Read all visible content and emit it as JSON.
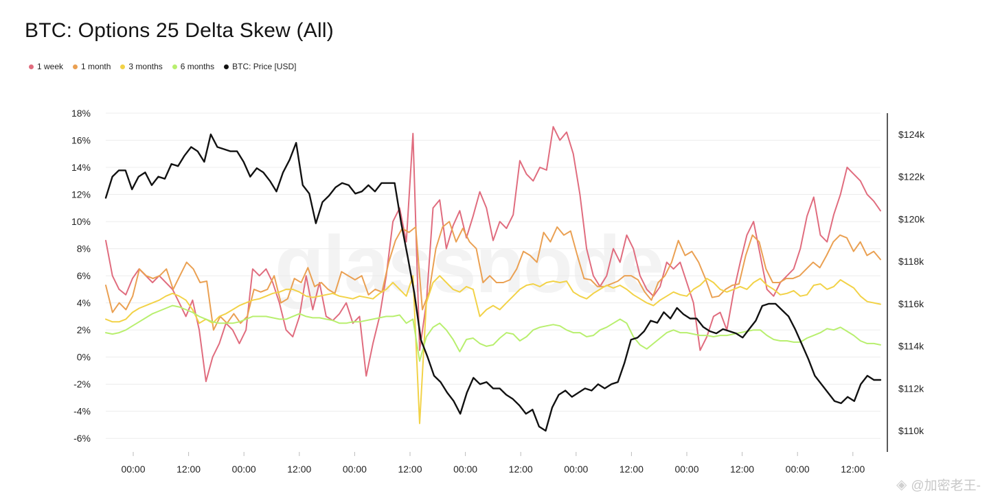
{
  "title": "BTC: Options 25 Delta Skew (All)",
  "watermark": "glassnode",
  "badge": {
    "icon": "diamond-icon",
    "text": "@加密老王-"
  },
  "legend": [
    {
      "label": "1 week",
      "color": "#e06c7e"
    },
    {
      "label": "1 month",
      "color": "#eaa052"
    },
    {
      "label": "3 months",
      "color": "#f2d247"
    },
    {
      "label": "6 months",
      "color": "#b8ef6e"
    },
    {
      "label": "BTC: Price [USD]",
      "color": "#111111"
    }
  ],
  "chart_data": {
    "type": "line",
    "x_tick_labels": [
      "00:00",
      "12:00",
      "00:00",
      "12:00",
      "00:00",
      "12:00",
      "00:00",
      "12:00",
      "00:00",
      "12:00",
      "00:00",
      "12:00",
      "00:00",
      "12:00"
    ],
    "y_left": {
      "ticks": [
        18,
        16,
        14,
        12,
        10,
        8,
        6,
        4,
        2,
        0,
        -2,
        -4,
        -6
      ],
      "tick_labels": [
        "18%",
        "16%",
        "14%",
        "12%",
        "10%",
        "8%",
        "6%",
        "4%",
        "2%",
        "0%",
        "-2%",
        "-4%",
        "-6%"
      ],
      "range": [
        -7,
        18
      ]
    },
    "y_right": {
      "ticks": [
        124000,
        122000,
        120000,
        118000,
        116000,
        114000,
        112000,
        110000
      ],
      "tick_labels": [
        "$124k",
        "$122k",
        "$120k",
        "$118k",
        "$116k",
        "$114k",
        "$112k",
        "$110k"
      ],
      "range": [
        109000,
        125000
      ]
    },
    "grid": true,
    "series": [
      {
        "name": "1 week",
        "axis": "left",
        "color": "#e06c7e",
        "values": [
          8.6,
          6,
          5,
          4.6,
          5.8,
          6.5,
          6,
          5.5,
          6,
          5.5,
          5,
          4,
          3,
          4.2,
          2,
          -1.8,
          0,
          1,
          2.5,
          2,
          1,
          2,
          6.5,
          6,
          6.5,
          5.5,
          4,
          2,
          1.5,
          3,
          6,
          3.5,
          5.5,
          3,
          2.7,
          3.2,
          4,
          2.5,
          3,
          -1.4,
          1,
          3,
          6,
          10,
          11,
          8.5,
          16.5,
          0.5,
          4,
          11,
          11.6,
          8,
          9.7,
          10.8,
          8.8,
          10.4,
          12.2,
          11,
          8.6,
          10,
          9.5,
          10.5,
          14.5,
          13.5,
          13,
          14,
          13.8,
          17,
          16,
          16.6,
          15,
          12,
          8,
          6,
          5.2,
          6,
          8,
          7,
          9,
          8,
          6,
          5,
          4.5,
          5.2,
          7,
          6.5,
          7,
          5.5,
          4,
          0.5,
          1.5,
          3,
          3.3,
          2,
          4.8,
          7,
          9,
          10,
          7.5,
          5,
          4.5,
          5.5,
          6,
          6.5,
          8,
          10.4,
          11.8,
          9,
          8.5,
          10.5,
          12,
          14,
          13.5,
          13,
          12,
          11.5,
          10.8
        ]
      },
      {
        "name": "1 month",
        "axis": "left",
        "color": "#eaa052",
        "values": [
          5.3,
          3.3,
          4,
          3.5,
          4.5,
          6.5,
          6,
          5.8,
          6,
          6.5,
          5,
          6,
          7,
          6.5,
          5.5,
          5.6,
          2,
          3,
          2.5,
          3.2,
          2.5,
          3,
          5,
          4.8,
          5,
          6,
          4,
          4.3,
          5.8,
          5.5,
          6.6,
          5.2,
          5.5,
          5,
          4.7,
          6.3,
          6,
          5.7,
          6,
          4.6,
          5,
          4.8,
          7,
          8.6,
          9.5,
          9.2,
          9.6,
          3.5,
          4.8,
          8,
          9.6,
          10,
          8.5,
          9.5,
          8.5,
          8,
          5.5,
          6,
          5.5,
          5.5,
          5.7,
          6.5,
          7.8,
          7.5,
          7,
          9.2,
          8.5,
          9.6,
          9,
          9.3,
          7.5,
          5.8,
          5.7,
          5.2,
          5.2,
          5.4,
          5.6,
          6,
          6,
          5.7,
          4.8,
          4.2,
          5.5,
          6,
          7,
          8.6,
          7.5,
          7.8,
          7,
          5.8,
          4.4,
          4.5,
          5,
          5.3,
          5.4,
          7.5,
          9,
          8.5,
          6.5,
          5.5,
          5.5,
          5.8,
          5.8,
          6,
          6.5,
          7,
          6.6,
          7.5,
          8.5,
          9,
          8.8,
          7.8,
          8.5,
          7.5,
          7.8,
          7.2
        ]
      },
      {
        "name": "3 months",
        "axis": "left",
        "color": "#f2d247",
        "values": [
          2.8,
          2.6,
          2.6,
          2.8,
          3.3,
          3.6,
          3.8,
          4,
          4.2,
          4.5,
          4.7,
          4.5,
          4.2,
          3.5,
          2.5,
          2.8,
          2.5,
          3,
          3.2,
          3.5,
          3.8,
          4,
          4.2,
          4.3,
          4.5,
          4.7,
          4.8,
          5,
          5,
          4.8,
          4.5,
          4.4,
          4.5,
          4.6,
          4.7,
          4.5,
          4.4,
          4.3,
          4.5,
          4.4,
          4.3,
          4.7,
          5,
          5.5,
          5,
          4.5,
          6,
          -4.9,
          4,
          5.5,
          6,
          5.5,
          5,
          4.8,
          5.2,
          5,
          3,
          3.5,
          3.8,
          3.5,
          4,
          4.5,
          5,
          5.3,
          5.4,
          5.2,
          5.5,
          5.6,
          5.5,
          5.6,
          4.8,
          4.5,
          4.3,
          4.7,
          5,
          5.3,
          5.1,
          5.3,
          5,
          4.6,
          4.3,
          4,
          3.8,
          4.2,
          4.5,
          4.8,
          4.6,
          4.5,
          5,
          5.3,
          5.8,
          5.5,
          5,
          4.8,
          5,
          5.2,
          5,
          5.5,
          5.8,
          5.3,
          5,
          4.6,
          4.7,
          4.9,
          4.5,
          4.6,
          5.3,
          5.4,
          5,
          5.2,
          5.7,
          5.4,
          5.1,
          4.5,
          4.1,
          4,
          3.9
        ]
      },
      {
        "name": "6 months",
        "axis": "left",
        "color": "#b8ef6e",
        "values": [
          1.8,
          1.7,
          1.8,
          2,
          2.3,
          2.6,
          2.9,
          3.2,
          3.4,
          3.6,
          3.8,
          3.7,
          3.5,
          3.3,
          3,
          2.8,
          2.6,
          2.5,
          2.5,
          2.5,
          2.6,
          2.8,
          3,
          3,
          3,
          2.9,
          2.8,
          2.8,
          3,
          3.2,
          3,
          2.9,
          2.9,
          2.8,
          2.7,
          2.5,
          2.5,
          2.6,
          2.6,
          2.7,
          2.8,
          2.9,
          3,
          3,
          3.1,
          2.5,
          2.8,
          -0.3,
          1.5,
          2.2,
          2.5,
          2,
          1.3,
          0.4,
          1.3,
          1.4,
          1,
          0.8,
          0.9,
          1.4,
          1.8,
          1.7,
          1.2,
          1.5,
          2,
          2.2,
          2.3,
          2.4,
          2.3,
          2,
          1.8,
          1.8,
          1.5,
          1.6,
          2,
          2.2,
          2.5,
          2.8,
          2.5,
          1.5,
          0.9,
          0.6,
          1,
          1.4,
          1.8,
          2,
          1.8,
          1.8,
          1.7,
          1.6,
          1.6,
          1.5,
          1.6,
          1.6,
          1.7,
          1.8,
          1.9,
          2,
          2,
          1.6,
          1.3,
          1.2,
          1.2,
          1.1,
          1.1,
          1.4,
          1.6,
          1.8,
          2.1,
          2,
          2.2,
          1.9,
          1.6,
          1.2,
          1,
          1,
          0.9
        ]
      },
      {
        "name": "BTC: Price [USD]",
        "axis": "right",
        "color": "#111111",
        "values": [
          121000,
          122000,
          122300,
          122300,
          121400,
          122000,
          122200,
          121600,
          122000,
          121900,
          122600,
          122500,
          123000,
          123400,
          123200,
          122700,
          124000,
          123400,
          123300,
          123200,
          123200,
          122700,
          122000,
          122400,
          122200,
          121800,
          121300,
          122200,
          122800,
          123600,
          121600,
          121200,
          119800,
          120800,
          121100,
          121500,
          121700,
          121600,
          121200,
          121300,
          121600,
          121300,
          121700,
          121700,
          121700,
          119800,
          118200,
          116500,
          114300,
          113500,
          112600,
          112300,
          111800,
          111400,
          110800,
          111800,
          112500,
          112200,
          112300,
          112000,
          112000,
          111700,
          111500,
          111200,
          110800,
          111000,
          110200,
          110000,
          111100,
          111700,
          111900,
          111600,
          111800,
          112000,
          111900,
          112200,
          112000,
          112200,
          112300,
          113200,
          114300,
          114400,
          114700,
          115200,
          115100,
          115600,
          115300,
          115800,
          115500,
          115300,
          115300,
          114900,
          114700,
          114600,
          114800,
          114700,
          114600,
          114400,
          114800,
          115200,
          115900,
          116000,
          116000,
          115700,
          115400,
          114800,
          114100,
          113400,
          112600,
          112200,
          111800,
          111400,
          111300,
          111600,
          111400,
          112200,
          112600,
          112400,
          112400
        ]
      }
    ]
  }
}
